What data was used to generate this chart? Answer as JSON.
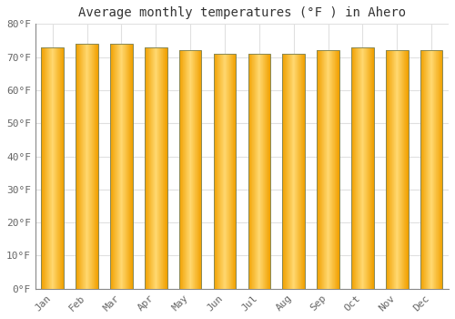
{
  "title": "Average monthly temperatures (°F ) in Ahero",
  "months": [
    "Jan",
    "Feb",
    "Mar",
    "Apr",
    "May",
    "Jun",
    "Jul",
    "Aug",
    "Sep",
    "Oct",
    "Nov",
    "Dec"
  ],
  "values": [
    73,
    74,
    74,
    73,
    72,
    71,
    71,
    71,
    72,
    73,
    72,
    72
  ],
  "ylim": [
    0,
    80
  ],
  "yticks": [
    0,
    10,
    20,
    30,
    40,
    50,
    60,
    70,
    80
  ],
  "ytick_labels": [
    "0°F",
    "10°F",
    "20°F",
    "30°F",
    "40°F",
    "50°F",
    "60°F",
    "70°F",
    "80°F"
  ],
  "bar_color_dark": "#F0A000",
  "bar_color_light": "#FFD870",
  "background_color": "#FFFFFF",
  "grid_color": "#E0E0E0",
  "bar_edge_color": "#888855",
  "title_fontsize": 10,
  "tick_fontsize": 8,
  "font_family": "monospace",
  "bar_width": 0.65
}
